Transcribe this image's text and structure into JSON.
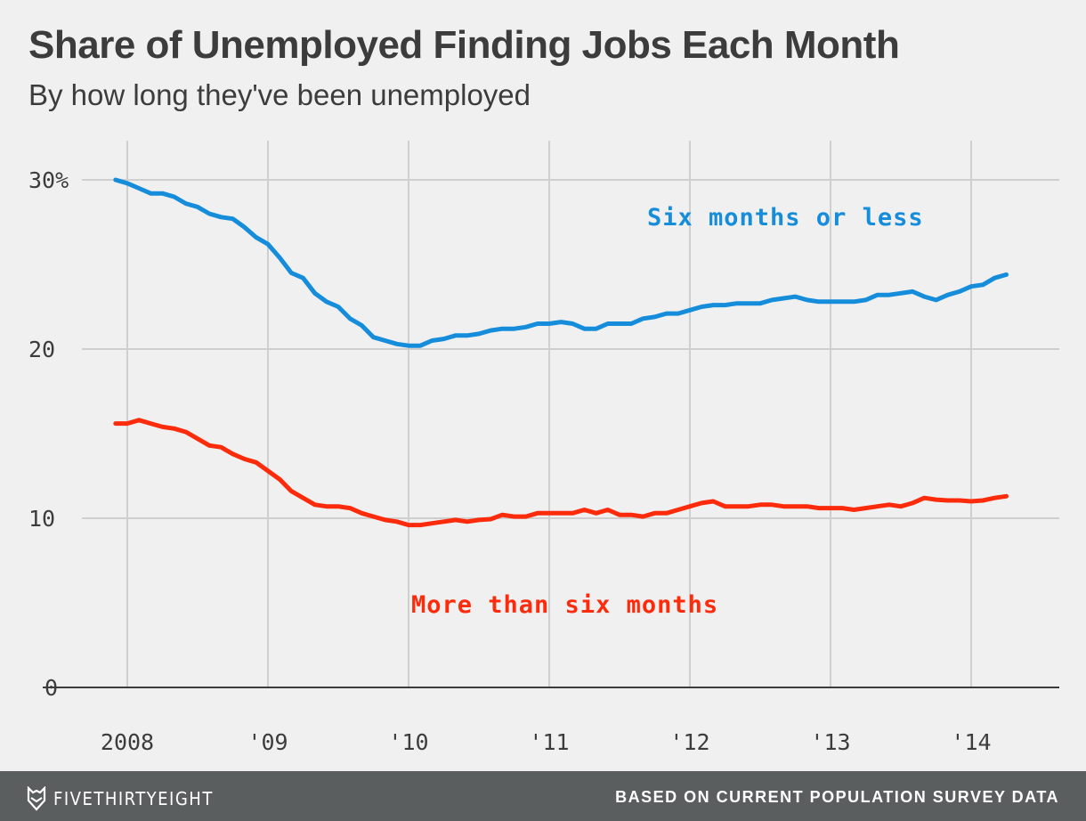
{
  "header": {
    "title": "Share of Unemployed Finding Jobs Each Month",
    "subtitle": "By how long they've been unemployed"
  },
  "footer": {
    "brand": "FIVETHIRTYEIGHT",
    "brand_icon": "fox-icon",
    "source": "BASED ON CURRENT POPULATION SURVEY DATA"
  },
  "chart_data": {
    "type": "line",
    "title": "Share of Unemployed Finding Jobs Each Month",
    "subtitle": "By how long they've been unemployed",
    "x_start": "2007-12",
    "x_frequency": "monthly",
    "x_ticks": [
      {
        "year": 2008,
        "label": "2008"
      },
      {
        "year": 2009,
        "label": "'09"
      },
      {
        "year": 2010,
        "label": "'10"
      },
      {
        "year": 2011,
        "label": "'11"
      },
      {
        "year": 2012,
        "label": "'12"
      },
      {
        "year": 2013,
        "label": "'13"
      },
      {
        "year": 2014,
        "label": "'14"
      }
    ],
    "y_ticks": [
      {
        "value": 0,
        "label": "0"
      },
      {
        "value": 10,
        "label": "10"
      },
      {
        "value": 20,
        "label": "20"
      },
      {
        "value": 30,
        "label": "30%"
      }
    ],
    "ylim": [
      0,
      30
    ],
    "grid": true,
    "series": [
      {
        "name": "Six months or less",
        "color": "#168ddb",
        "values": [
          30.0,
          29.8,
          29.5,
          29.2,
          29.2,
          29.0,
          28.6,
          28.4,
          28.0,
          27.8,
          27.7,
          27.2,
          26.6,
          26.2,
          25.4,
          24.5,
          24.2,
          23.3,
          22.8,
          22.5,
          21.8,
          21.4,
          20.7,
          20.5,
          20.3,
          20.2,
          20.2,
          20.5,
          20.6,
          20.8,
          20.8,
          20.9,
          21.1,
          21.2,
          21.2,
          21.3,
          21.5,
          21.5,
          21.6,
          21.5,
          21.2,
          21.2,
          21.5,
          21.5,
          21.5,
          21.8,
          21.9,
          22.1,
          22.1,
          22.3,
          22.5,
          22.6,
          22.6,
          22.7,
          22.7,
          22.7,
          22.9,
          23.0,
          23.1,
          22.9,
          22.8,
          22.8,
          22.8,
          22.8,
          22.9,
          23.2,
          23.2,
          23.3,
          23.4,
          23.1,
          22.9,
          23.2,
          23.4,
          23.7,
          23.8,
          24.2,
          24.4
        ]
      },
      {
        "name": "More than six months",
        "color": "#fc2b0b",
        "values": [
          15.6,
          15.6,
          15.8,
          15.6,
          15.4,
          15.3,
          15.1,
          14.7,
          14.3,
          14.2,
          13.8,
          13.5,
          13.3,
          12.8,
          12.3,
          11.6,
          11.2,
          10.8,
          10.7,
          10.7,
          10.6,
          10.3,
          10.1,
          9.9,
          9.8,
          9.6,
          9.6,
          9.7,
          9.8,
          9.9,
          9.8,
          9.9,
          9.95,
          10.2,
          10.1,
          10.1,
          10.3,
          10.3,
          10.3,
          10.3,
          10.5,
          10.3,
          10.5,
          10.2,
          10.2,
          10.1,
          10.3,
          10.3,
          10.5,
          10.7,
          10.9,
          11.0,
          10.7,
          10.7,
          10.7,
          10.8,
          10.8,
          10.7,
          10.7,
          10.7,
          10.6,
          10.6,
          10.6,
          10.5,
          10.6,
          10.7,
          10.8,
          10.7,
          10.9,
          11.2,
          11.1,
          11.05,
          11.05,
          11.0,
          11.05,
          11.2,
          11.3
        ]
      }
    ]
  }
}
